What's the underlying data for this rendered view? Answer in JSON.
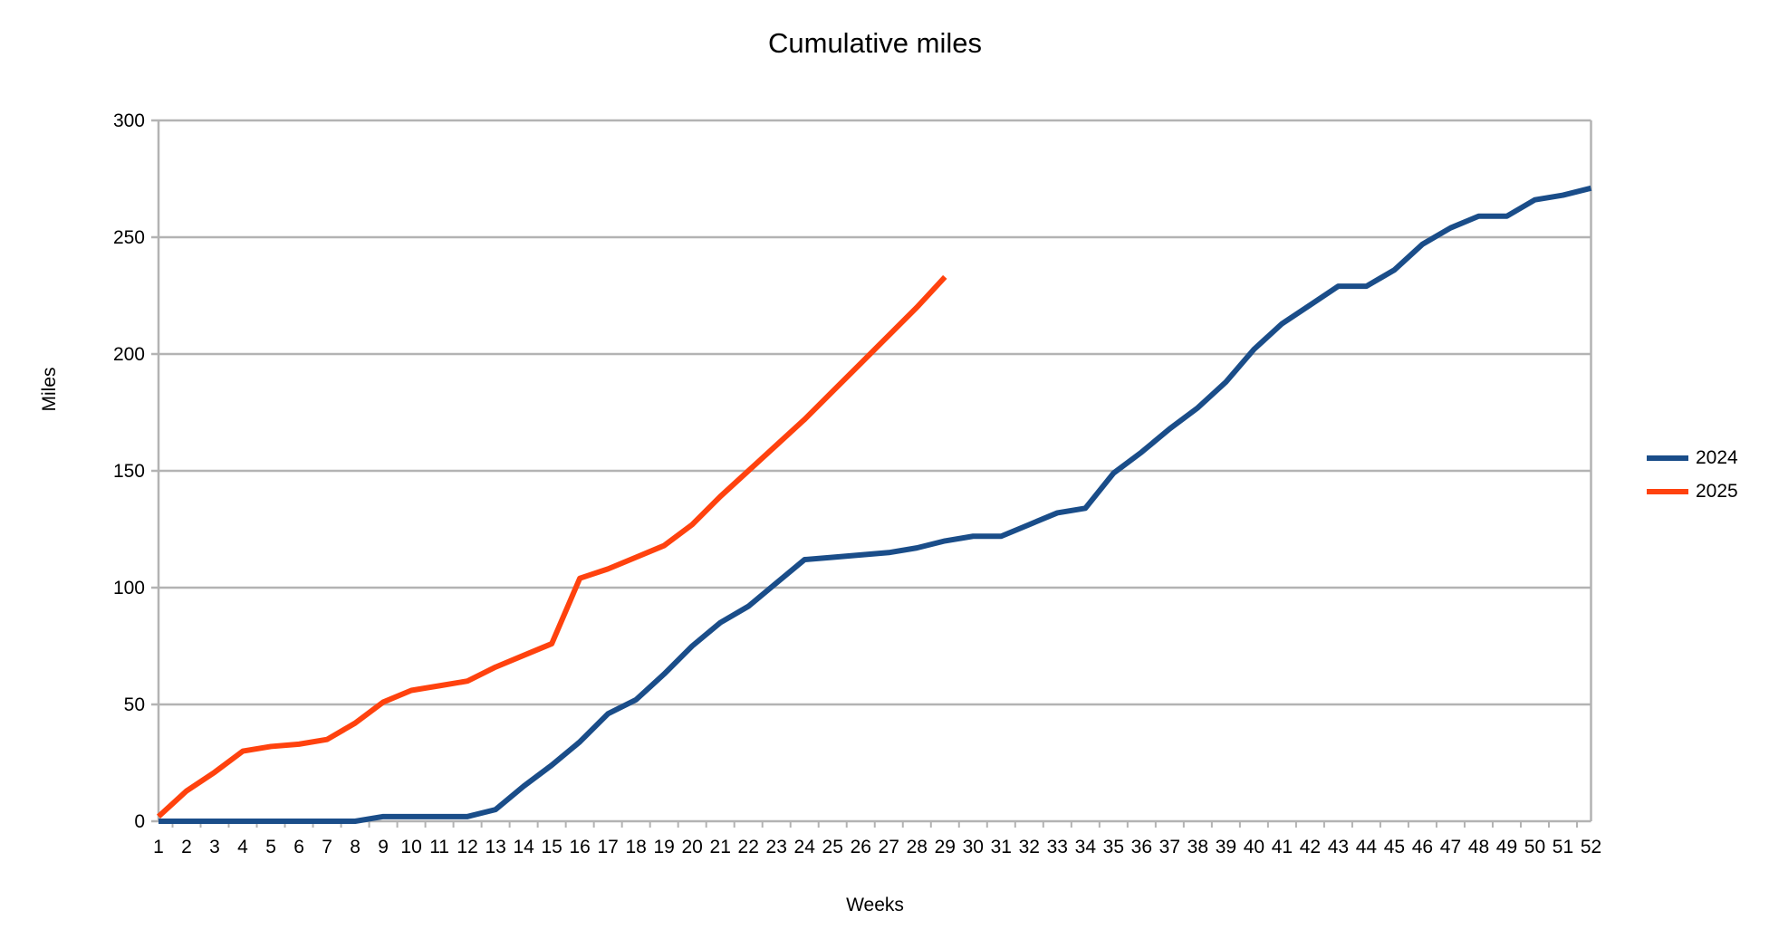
{
  "title": "Cumulative miles",
  "colors": {
    "series_2024": "#1A4D89",
    "series_2025": "#FF420E",
    "grid": "#B3B3B3",
    "axis": "#B3B3B3",
    "text": "#000000",
    "background": "#FFFFFF"
  },
  "chart_data": {
    "type": "line",
    "title": "Cumulative miles",
    "xlabel": "Weeks",
    "ylabel": "Miles",
    "x": [
      1,
      2,
      3,
      4,
      5,
      6,
      7,
      8,
      9,
      10,
      11,
      12,
      13,
      14,
      15,
      16,
      17,
      18,
      19,
      20,
      21,
      22,
      23,
      24,
      25,
      26,
      27,
      28,
      29,
      30,
      31,
      32,
      33,
      34,
      35,
      36,
      37,
      38,
      39,
      40,
      41,
      42,
      43,
      44,
      45,
      46,
      47,
      48,
      49,
      50,
      51,
      52
    ],
    "xlim": [
      1,
      52
    ],
    "ylim": [
      0,
      300
    ],
    "yticks": [
      0,
      50,
      100,
      150,
      200,
      250,
      300
    ],
    "grid": "horizontal",
    "legend_position": "right",
    "series": [
      {
        "name": "2024",
        "color": "#1A4D89",
        "values": [
          0,
          0,
          0,
          0,
          0,
          0,
          0,
          0,
          2,
          2,
          2,
          2,
          5,
          15,
          24,
          34,
          46,
          52,
          63,
          75,
          85,
          92,
          102,
          112,
          113,
          114,
          115,
          117,
          120,
          122,
          122,
          127,
          132,
          134,
          149,
          158,
          168,
          177,
          188,
          202,
          213,
          221,
          229,
          229,
          236,
          247,
          254,
          259,
          259,
          266,
          268,
          271
        ]
      },
      {
        "name": "2025",
        "color": "#FF420E",
        "values": [
          2,
          13,
          21,
          30,
          32,
          33,
          35,
          42,
          51,
          56,
          58,
          60,
          66,
          71,
          76,
          104,
          108,
          113,
          118,
          127,
          139,
          150,
          161,
          172,
          184,
          196,
          208,
          220,
          233
        ]
      }
    ]
  }
}
